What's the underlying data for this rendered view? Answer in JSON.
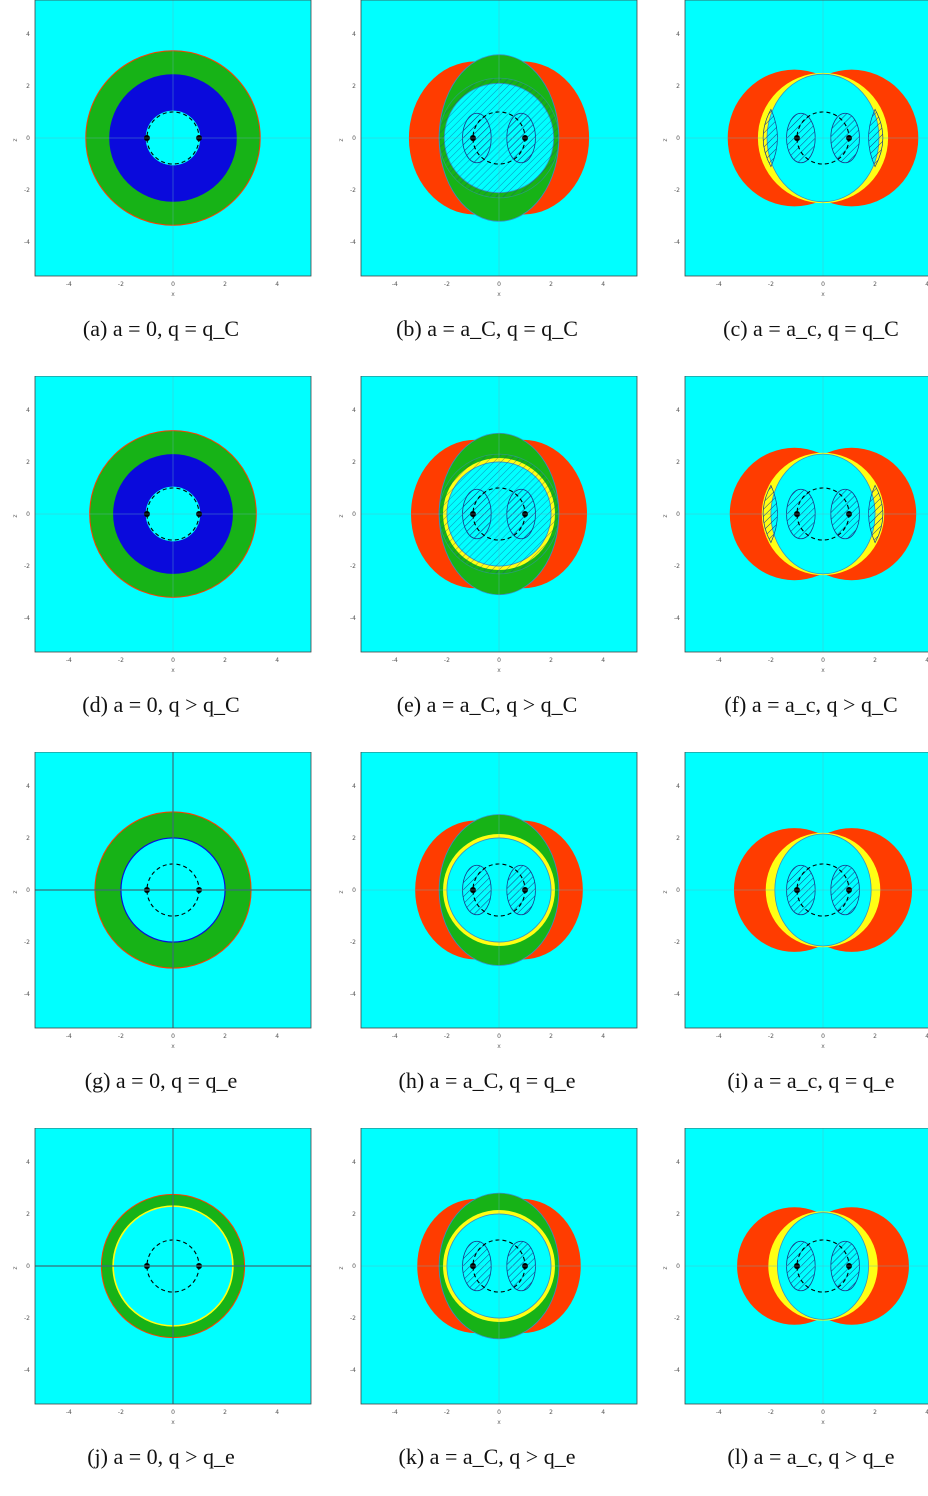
{
  "colors": {
    "background": "#00ffff",
    "green": "#17b317",
    "blue": "#0a0adc",
    "red": "#ff3c00",
    "yellow": "#ffff14",
    "hatch": "#1a3a8a",
    "axis_dark": "#3b6f77"
  },
  "axes": {
    "xlabel": "x",
    "ylabel": "z",
    "ticks": [
      "-4",
      "-2",
      "0",
      "2",
      "4"
    ],
    "yticks": [
      "4",
      "2",
      "0",
      "-2",
      "-4"
    ]
  },
  "panels": [
    {
      "id": "a",
      "caption": "(a) a = 0, q = q_C",
      "type": "sym",
      "outer": 3.35,
      "band_mid": 2.45,
      "inner_color": "blue",
      "dark_axes": false
    },
    {
      "id": "b",
      "caption": "(b) a = a_C, q = q_C",
      "type": "rot_green",
      "red_r": 3.2,
      "yellow": false,
      "hatch_big": true
    },
    {
      "id": "c",
      "caption": "(c) a = a_c, q = q_C",
      "type": "rot_yellow",
      "red_r": 3.2,
      "yellow_r": 2.5,
      "side_hatch": true
    },
    {
      "id": "d",
      "caption": "(d) a = 0, q > q_C",
      "type": "sym",
      "outer": 3.2,
      "band_mid": 2.3,
      "inner_color": "blue",
      "dark_axes": false
    },
    {
      "id": "e",
      "caption": "(e) a = a_C, q > q_C",
      "type": "rot_green",
      "red_r": 3.1,
      "yellow": true,
      "hatch_big": true
    },
    {
      "id": "f",
      "caption": "(f) a = a_c, q > q_C",
      "type": "rot_yellow",
      "red_r": 3.1,
      "yellow_r": 2.35,
      "side_hatch": true
    },
    {
      "id": "g",
      "caption": "(g) a = 0, q = q_e",
      "type": "sym",
      "outer": 3.0,
      "band_mid": 2.0,
      "inner_color": "none",
      "dark_axes": true
    },
    {
      "id": "h",
      "caption": "(h) a = a_C, q = q_e",
      "type": "rot_green",
      "red_r": 2.9,
      "yellow": true,
      "hatch_big": false
    },
    {
      "id": "i",
      "caption": "(i) a = a_c, q = q_e",
      "type": "rot_yellow",
      "red_r": 2.9,
      "yellow_r": 2.2,
      "side_hatch": false
    },
    {
      "id": "j",
      "caption": "(j) a = 0, q > q_e",
      "type": "sym",
      "outer": 2.75,
      "band_mid": 2.3,
      "inner_color": "yellowline",
      "dark_axes": true
    },
    {
      "id": "k",
      "caption": "(k) a = a_C, q > q_e",
      "type": "rot_green",
      "red_r": 2.8,
      "yellow": true,
      "hatch_big": false
    },
    {
      "id": "l",
      "caption": "(l) a = a_c, q > q_e",
      "type": "rot_yellow",
      "red_r": 2.75,
      "yellow_r": 2.1,
      "side_hatch": false
    }
  ]
}
